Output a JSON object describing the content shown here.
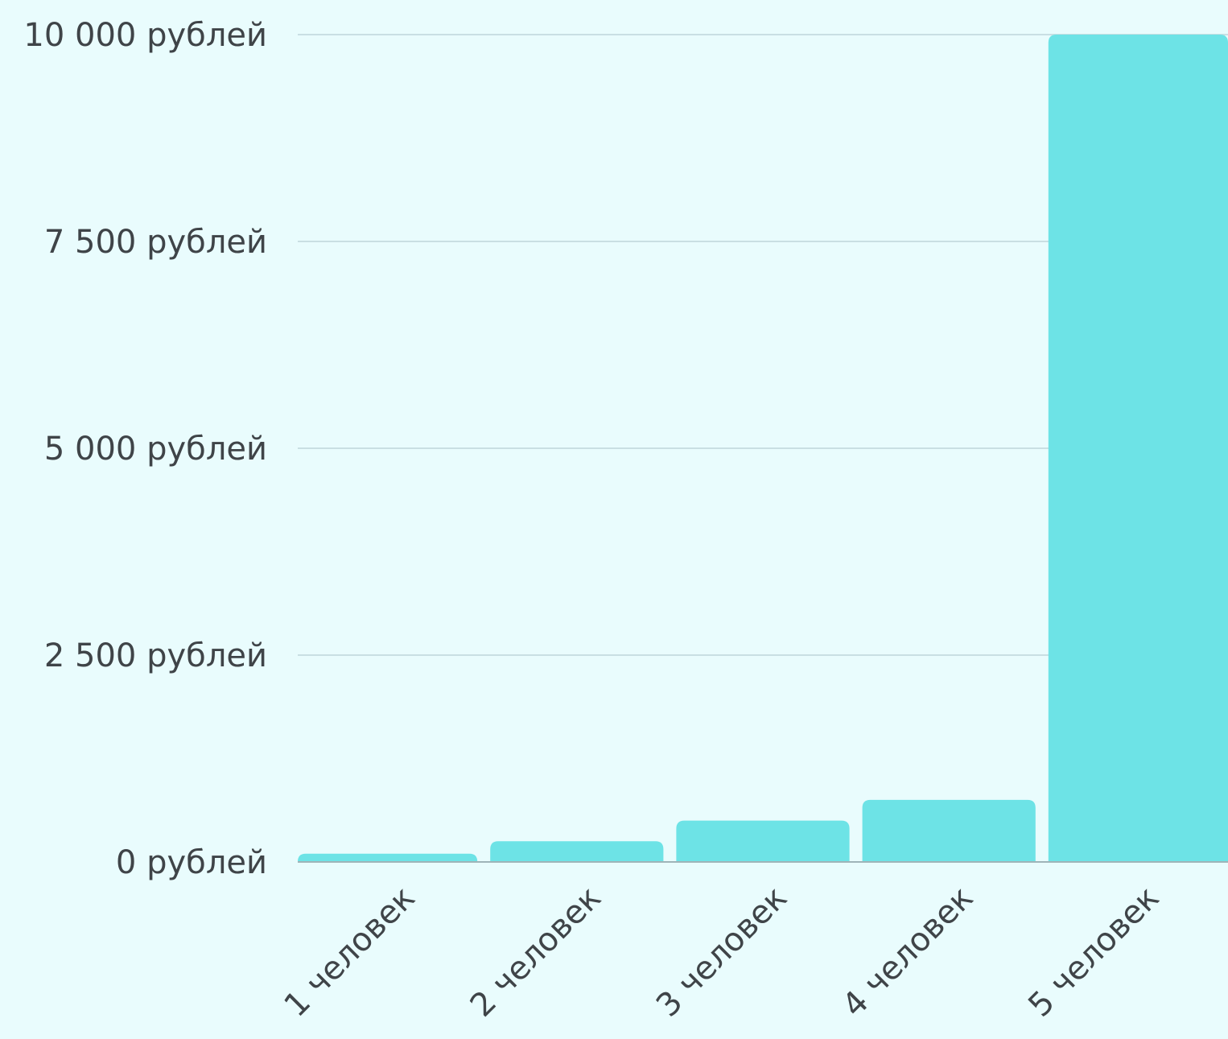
{
  "chart_data": {
    "type": "bar",
    "categories": [
      "1 человек",
      "2 человек",
      "3 человек",
      "4 человек",
      "5 человек"
    ],
    "values": [
      100,
      250,
      500,
      750,
      10000
    ],
    "y_tick_labels": [
      "0 рублей",
      "2 500 рублей",
      "5 000 рублей",
      "7 500 рублей",
      "10 000 рублей"
    ],
    "y_ticks": [
      0,
      2500,
      5000,
      7500,
      10000
    ],
    "ylim": [
      0,
      10000
    ],
    "grid": true,
    "colors": {
      "bar": "#6de3e6",
      "grid": "#c9dfe3",
      "axis": "#9fb4b8",
      "text": "#3f4448",
      "background": "#e9fcfd"
    }
  }
}
